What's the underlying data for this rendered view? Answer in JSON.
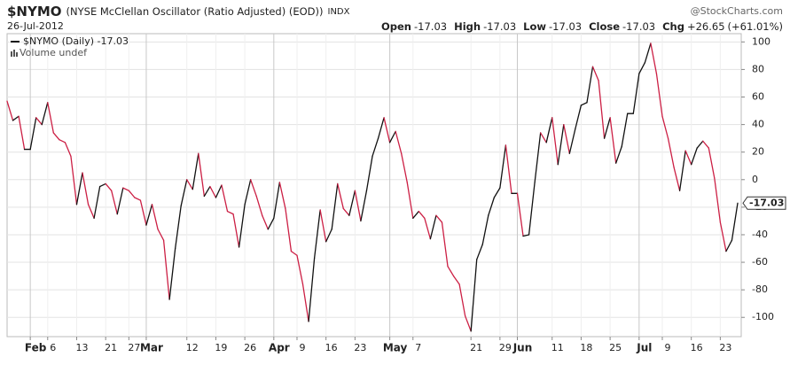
{
  "chart_data": {
    "type": "line",
    "symbol": "$NYMO",
    "title": "(NYSE McClellan Oscillator (Ratio Adjusted) (EOD))",
    "exchange": "INDX",
    "source": "@StockCharts.com",
    "date": "26-Jul-2012",
    "quote": [
      {
        "label": "Open",
        "value": -17.03
      },
      {
        "label": "High",
        "value": -17.03
      },
      {
        "label": "Low",
        "value": -17.03
      },
      {
        "label": "Close",
        "value": -17.03
      }
    ],
    "change": {
      "label": "Chg",
      "value": 26.65,
      "value_label": "+26.65",
      "pct": 61.01,
      "pct_label": "(+61.01%)"
    },
    "legend": "$NYMO (Daily) -17.03",
    "volume_label": "Volume undef",
    "categories": [
      null,
      null,
      null,
      null,
      "Feb",
      null,
      null,
      "6",
      null,
      null,
      null,
      null,
      "13",
      null,
      null,
      null,
      null,
      "21",
      null,
      null,
      null,
      "27",
      null,
      null,
      "Mar",
      null,
      null,
      null,
      null,
      null,
      null,
      "12",
      null,
      null,
      null,
      null,
      "19",
      null,
      null,
      null,
      null,
      "26",
      null,
      null,
      null,
      null,
      "Apr",
      null,
      null,
      null,
      "9",
      null,
      null,
      null,
      null,
      "16",
      null,
      null,
      null,
      null,
      "23",
      null,
      null,
      null,
      null,
      null,
      "May",
      null,
      null,
      null,
      "7",
      null,
      null,
      null,
      null,
      null,
      null,
      null,
      null,
      null,
      "21",
      null,
      null,
      null,
      null,
      "29",
      null,
      null,
      "Jun",
      null,
      null,
      null,
      null,
      null,
      "11",
      null,
      null,
      null,
      null,
      "18",
      null,
      null,
      null,
      null,
      "25",
      null,
      null,
      null,
      null,
      "Jul",
      null,
      null,
      null,
      "9",
      null,
      null,
      null,
      null,
      "16",
      null,
      null,
      null,
      null,
      "23",
      null,
      null,
      null
    ],
    "values": [
      57,
      43,
      46,
      22,
      22,
      45,
      40,
      56,
      34,
      29,
      27,
      17,
      -18,
      5,
      -18,
      -28,
      -5,
      -3,
      -8,
      -25,
      -6,
      -8,
      -13,
      -15,
      -33,
      -18,
      -36,
      -44,
      -87,
      -50,
      -19,
      0,
      -7,
      19,
      -12,
      -5,
      -13,
      -4,
      -23,
      -25,
      -49,
      -18,
      0,
      -12,
      -26,
      -36,
      -28,
      -2,
      -21,
      -52,
      -55,
      -76,
      -103,
      -57,
      -22,
      -45,
      -36,
      -3,
      -21,
      -26,
      -8,
      -30,
      -8,
      17,
      30,
      45,
      27,
      35,
      19,
      -2,
      -28,
      -23,
      -28,
      -43,
      -26,
      -31,
      -63,
      -70,
      -76,
      -99,
      -110,
      -58,
      -47,
      -26,
      -13,
      -6,
      25,
      -10,
      -10,
      -41,
      -40,
      -2,
      34,
      27,
      45,
      11,
      40,
      19,
      37,
      54,
      56,
      82,
      72,
      30,
      45,
      12,
      24,
      48,
      48,
      77,
      85,
      99,
      77,
      46,
      30,
      9,
      -8,
      21,
      11,
      23,
      28,
      23,
      1,
      -31,
      -52,
      -44,
      -17.03
    ],
    "ylim": [
      -114,
      106
    ],
    "yticks": [
      -100,
      -80,
      -60,
      -40,
      -20,
      0,
      20,
      40,
      60,
      80,
      100
    ],
    "grid": true,
    "up_color": "#111111",
    "down_color": "#cc1f44"
  }
}
